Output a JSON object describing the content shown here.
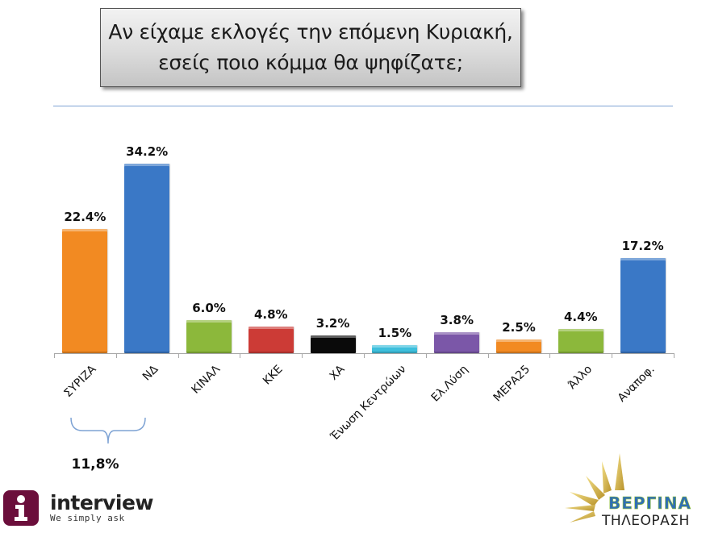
{
  "title": {
    "line1": "Αν είχαμε εκλογές την επόμενη Κυριακή,",
    "line2": "εσείς ποιο κόμμα θα ψηφίζατε;"
  },
  "chart_data": {
    "type": "bar",
    "title": "Αν είχαμε εκλογές την επόμενη Κυριακή, εσείς ποιο κόμμα θα ψηφίζατε;",
    "xlabel": "",
    "ylabel": "",
    "ylim": [
      0,
      35
    ],
    "grid": false,
    "legend": "none",
    "categories": [
      "ΣΥΡΙΖΑ",
      "ΝΔ",
      "ΚΙΝΑΛ",
      "ΚΚΕ",
      "ΧΑ",
      "Ένωση Κεντρώων",
      "Ελ.Λύση",
      "ΜΕΡΑ25",
      "Άλλο",
      "Αναποφ."
    ],
    "values": [
      22.4,
      34.2,
      6.0,
      4.8,
      3.2,
      1.5,
      3.8,
      2.5,
      4.4,
      17.2
    ],
    "value_labels": [
      "22.4%",
      "34.2%",
      "6.0%",
      "4.8%",
      "3.2%",
      "1.5%",
      "3.8%",
      "2.5%",
      "4.4%",
      "17.2%"
    ],
    "colors": [
      "#f28a22",
      "#3a78c6",
      "#8cb83b",
      "#cc3b36",
      "#0a0a0a",
      "#3dbfdc",
      "#7b57a8",
      "#f28a22",
      "#8cb83b",
      "#3a78c6"
    ],
    "annotations": [
      {
        "type": "brace",
        "spans": [
          "ΣΥΡΙΖΑ",
          "ΝΔ"
        ],
        "label": "11,8%"
      }
    ]
  },
  "logos": {
    "left": {
      "icon": "i",
      "name": "interview",
      "tagline": "We simply ask"
    },
    "right": {
      "name": "ΒΕΡΓΙΝΑ",
      "subtitle": "ΤΗΛΕΟΡΑΣΗ"
    }
  }
}
